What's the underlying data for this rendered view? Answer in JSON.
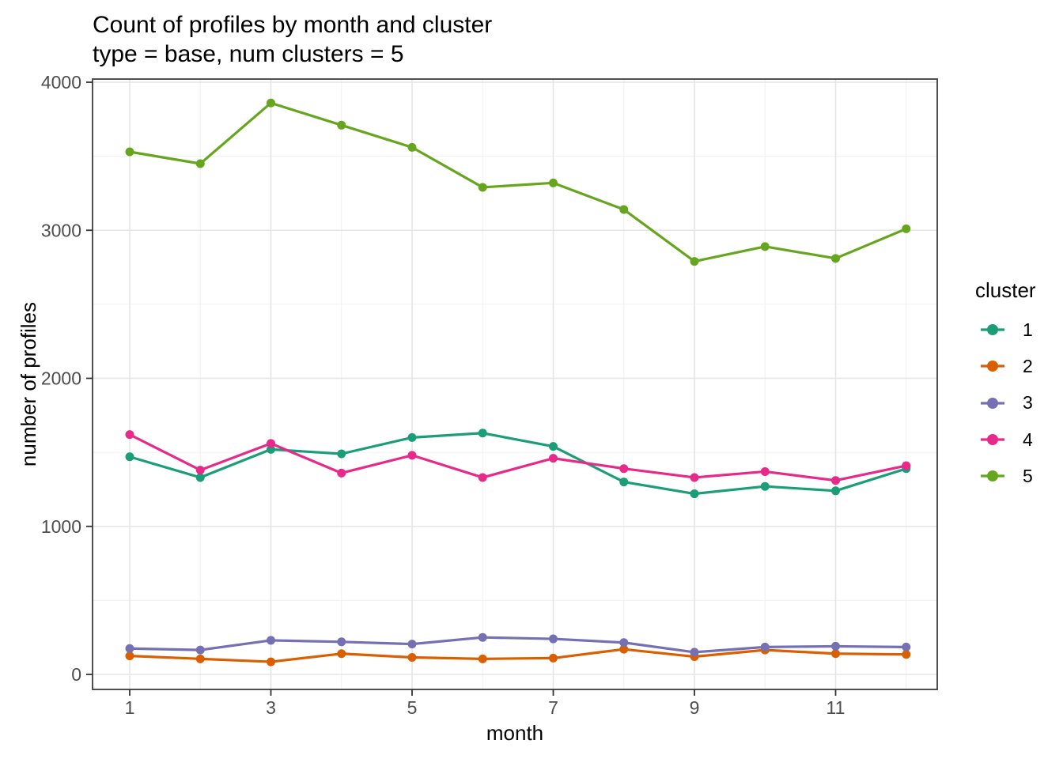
{
  "title": "Count of profiles by month and cluster",
  "subtitle": "type = base, num clusters = 5",
  "legend": {
    "title": "cluster"
  },
  "chart_data": {
    "type": "line",
    "title": "Count of profiles by month and cluster",
    "subtitle": "type = base, num clusters = 5",
    "xlabel": "month",
    "ylabel": "number of profiles",
    "x": [
      1,
      2,
      3,
      4,
      5,
      6,
      7,
      8,
      9,
      10,
      11,
      12
    ],
    "xticks": [
      1,
      3,
      5,
      7,
      9,
      11
    ],
    "yticks": [
      0,
      1000,
      2000,
      3000,
      4000
    ],
    "yticks_minor": [
      500,
      1500,
      2500,
      3500
    ],
    "ylim": [
      0,
      4000
    ],
    "grid": "major+minor",
    "legend_position": "right",
    "legend_title": "cluster",
    "series": [
      {
        "name": "1",
        "color": "#1B9E77",
        "values": [
          1470,
          1330,
          1520,
          1490,
          1600,
          1630,
          1540,
          1300,
          1220,
          1270,
          1240,
          1390
        ]
      },
      {
        "name": "2",
        "color": "#D95F02",
        "values": [
          125,
          105,
          85,
          140,
          115,
          105,
          110,
          170,
          120,
          165,
          140,
          135
        ]
      },
      {
        "name": "3",
        "color": "#7570B3",
        "values": [
          175,
          165,
          230,
          220,
          205,
          250,
          240,
          215,
          150,
          185,
          190,
          185
        ]
      },
      {
        "name": "4",
        "color": "#E7298A",
        "values": [
          1620,
          1380,
          1560,
          1360,
          1480,
          1330,
          1460,
          1390,
          1330,
          1370,
          1310,
          1410
        ]
      },
      {
        "name": "5",
        "color": "#66A61E",
        "values": [
          3530,
          3450,
          3860,
          3710,
          3560,
          3290,
          3320,
          3140,
          2790,
          2890,
          2810,
          3010
        ]
      }
    ],
    "style": {
      "panel_border_color": "#3c3c3c",
      "grid_major_color": "#e5e5e5",
      "grid_minor_color": "#f0f0f0",
      "tick_color": "#333333",
      "tick_label_color": "#4d4d4d"
    }
  }
}
